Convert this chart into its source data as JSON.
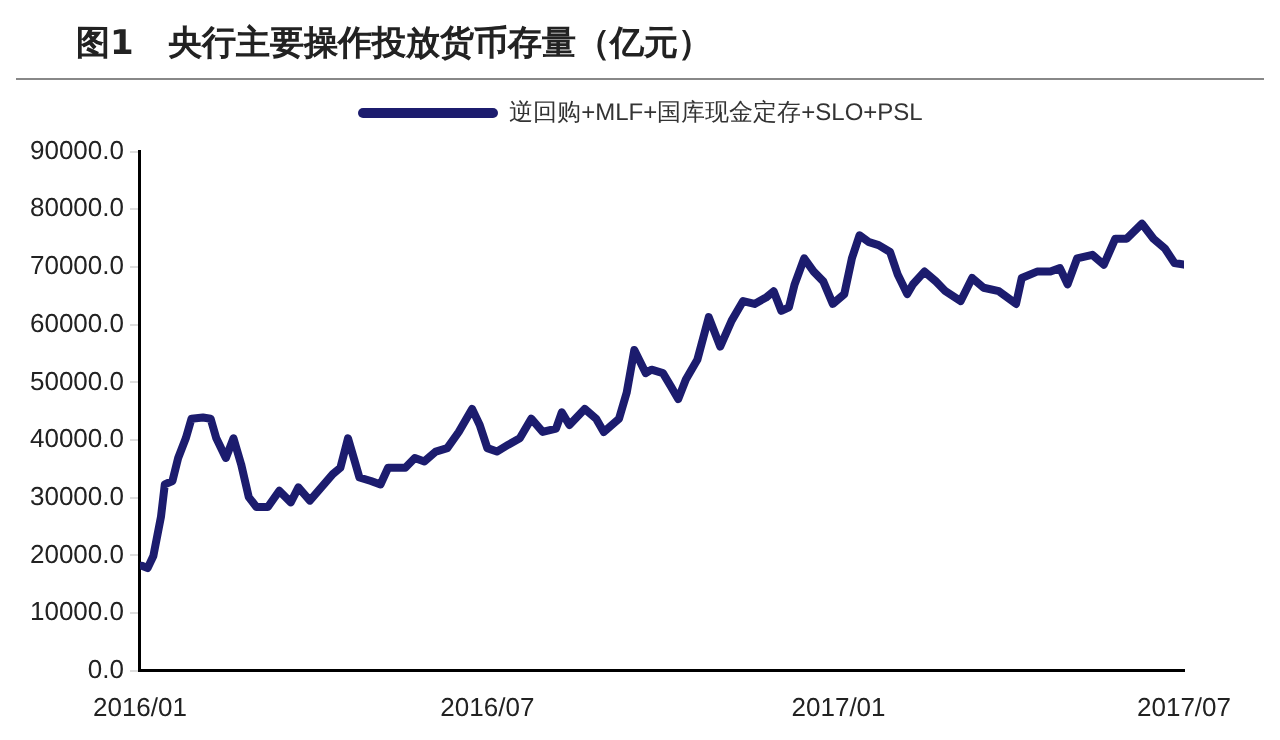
{
  "chart_data": {
    "type": "line",
    "title": "图1　央行主要操作投放货币存量（亿元）",
    "x": [
      "2016-01-02",
      "2016-01-05",
      "2016-01-08",
      "2016-01-12",
      "2016-01-14",
      "2016-01-18",
      "2016-01-21",
      "2016-01-25",
      "2016-01-28",
      "2016-02-03",
      "2016-02-07",
      "2016-02-10",
      "2016-02-15",
      "2016-02-19",
      "2016-02-23",
      "2016-02-27",
      "2016-03-02",
      "2016-03-08",
      "2016-03-14",
      "2016-03-20",
      "2016-03-24",
      "2016-03-30",
      "2016-04-05",
      "2016-04-11",
      "2016-04-15",
      "2016-04-19",
      "2016-04-22",
      "2016-04-25",
      "2016-05-01",
      "2016-05-06",
      "2016-05-10",
      "2016-05-19",
      "2016-05-24",
      "2016-05-29",
      "2016-06-04",
      "2016-06-10",
      "2016-06-16",
      "2016-06-23",
      "2016-06-27",
      "2016-07-01",
      "2016-07-06",
      "2016-07-12",
      "2016-07-18",
      "2016-07-24",
      "2016-07-30",
      "2016-08-06",
      "2016-08-09",
      "2016-08-13",
      "2016-08-21",
      "2016-08-27",
      "2016-08-31",
      "2016-09-08",
      "2016-09-12",
      "2016-09-16",
      "2016-09-22",
      "2016-09-25",
      "2016-10-01",
      "2016-10-05",
      "2016-10-09",
      "2016-10-13",
      "2016-10-19",
      "2016-10-25",
      "2016-10-31",
      "2016-11-06",
      "2016-11-12",
      "2016-11-18",
      "2016-11-24",
      "2016-11-28",
      "2016-12-02",
      "2016-12-06",
      "2016-12-09",
      "2016-12-14",
      "2016-12-19",
      "2016-12-24",
      "2016-12-29",
      "2017-01-04",
      "2017-01-08",
      "2017-01-12",
      "2017-01-17",
      "2017-01-22",
      "2017-01-28",
      "2017-02-01",
      "2017-02-06",
      "2017-02-09",
      "2017-02-15",
      "2017-02-21",
      "2017-02-26",
      "2017-03-06",
      "2017-03-12",
      "2017-03-18",
      "2017-03-26",
      "2017-04-04",
      "2017-04-07",
      "2017-04-15",
      "2017-04-22",
      "2017-04-27",
      "2017-05-01",
      "2017-05-06",
      "2017-05-14",
      "2017-05-20",
      "2017-05-26",
      "2017-06-01",
      "2017-06-09",
      "2017-06-15",
      "2017-06-21",
      "2017-06-26",
      "2017-07-01"
    ],
    "series": [
      {
        "name": "逆回购+MLF+国库现金定存+SLO+PSL",
        "color": "#1c1c6e",
        "values": [
          18200,
          17800,
          19900,
          26700,
          32300,
          32900,
          36900,
          40300,
          43700,
          43900,
          43700,
          40300,
          36900,
          40300,
          35800,
          30100,
          28400,
          28400,
          31200,
          29200,
          31800,
          29500,
          31800,
          34100,
          35200,
          40300,
          36900,
          33500,
          32900,
          32300,
          35200,
          35200,
          36900,
          36300,
          38000,
          38600,
          41400,
          45400,
          42600,
          38600,
          38000,
          39200,
          40300,
          43700,
          41400,
          42000,
          44800,
          42600,
          45400,
          43700,
          41400,
          43700,
          48200,
          55600,
          51600,
          52200,
          51600,
          49400,
          47100,
          50500,
          53900,
          61300,
          56200,
          60700,
          64100,
          63600,
          64700,
          65800,
          62400,
          63000,
          67000,
          71500,
          69200,
          67500,
          63600,
          65300,
          71500,
          75500,
          74300,
          73800,
          72600,
          68700,
          65300,
          67000,
          69200,
          67500,
          65800,
          64100,
          68100,
          66400,
          65800,
          63600,
          68100,
          69200,
          69200,
          69800,
          67000,
          71500,
          72100,
          70400,
          74900,
          74900,
          77500,
          74900,
          73200,
          70700,
          70400
        ]
      }
    ],
    "xlim": [
      "2016-01-01",
      "2017-07-01"
    ],
    "xticks": [
      {
        "value": "2016-01-01",
        "label": "2016/01"
      },
      {
        "value": "2016-07-01",
        "label": "2016/07"
      },
      {
        "value": "2017-01-01",
        "label": "2017/01"
      },
      {
        "value": "2017-07-01",
        "label": "2017/07"
      }
    ],
    "ylim": [
      0,
      90000
    ],
    "yticks": [
      {
        "value": 0,
        "label": "0.0"
      },
      {
        "value": 10000,
        "label": "10000.0"
      },
      {
        "value": 20000,
        "label": "20000.0"
      },
      {
        "value": 30000,
        "label": "30000.0"
      },
      {
        "value": 40000,
        "label": "40000.0"
      },
      {
        "value": 50000,
        "label": "50000.0"
      },
      {
        "value": 60000,
        "label": "60000.0"
      },
      {
        "value": 70000,
        "label": "70000.0"
      },
      {
        "value": 80000,
        "label": "80000.0"
      },
      {
        "value": 90000,
        "label": "90000.0"
      }
    ],
    "grid": false,
    "legend": "top",
    "marker": "none",
    "line_style": "solid"
  }
}
